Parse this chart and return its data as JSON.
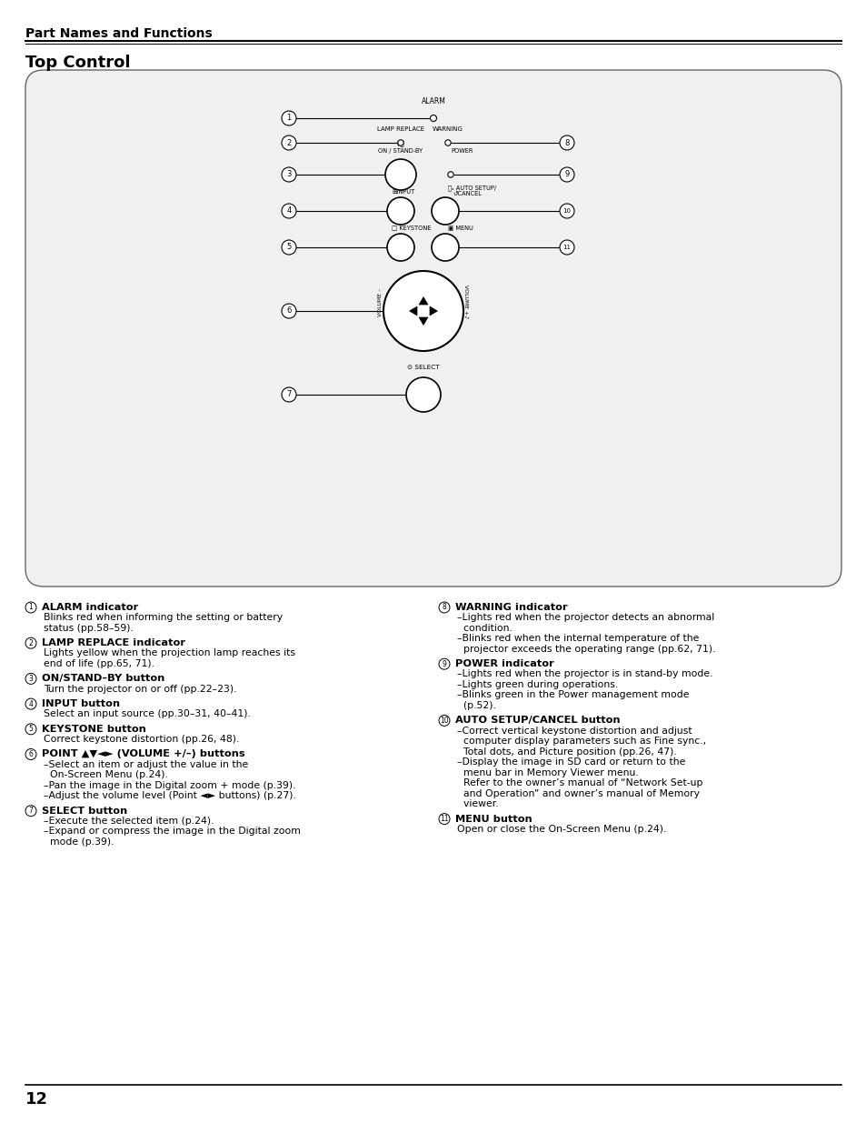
{
  "page_title": "Part Names and Functions",
  "section_title": "Top Control",
  "bg_color": "#ffffff",
  "page_number": "12",
  "left_items": [
    {
      "num": "1",
      "title": "ALARM indicator",
      "body": "Blinks red when informing the setting or battery\nstatus (pp.58–59)."
    },
    {
      "num": "2",
      "title": "LAMP REPLACE indicator",
      "body": "Lights yellow when the projection lamp reaches its\nend of life (pp.65, 71)."
    },
    {
      "num": "3",
      "title": "ON/STAND–BY button",
      "body": "Turn the projector on or off (pp.22–23)."
    },
    {
      "num": "4",
      "title": "INPUT button",
      "body": "Select an input source (pp.30–31, 40–41)."
    },
    {
      "num": "5",
      "title": "KEYSTONE button",
      "body": "Correct keystone distortion (pp.26, 48)."
    },
    {
      "num": "6",
      "title": "POINT ▲▼◄► (VOLUME +/–) buttons",
      "body": "–Select an item or adjust the value in the\n  On-Screen Menu (p.24).\n–Pan the image in the Digital zoom + mode (p.39).\n–Adjust the volume level (Point ◄► buttons) (p.27)."
    },
    {
      "num": "7",
      "title": "SELECT button",
      "body": "–Execute the selected item (p.24).\n–Expand or compress the image in the Digital zoom\n  mode (p.39)."
    }
  ],
  "right_items": [
    {
      "num": "8",
      "title": "WARNING indicator",
      "body": "–Lights red when the projector detects an abnormal\n  condition.\n–Blinks red when the internal temperature of the\n  projector exceeds the operating range (pp.62, 71)."
    },
    {
      "num": "9",
      "title": "POWER indicator",
      "body": "–Lights red when the projector is in stand-by mode.\n–Lights green during operations.\n–Blinks green in the Power management mode\n  (p.52)."
    },
    {
      "num": "10",
      "title": "AUTO SETUP/CANCEL button",
      "body": "–Correct vertical keystone distortion and adjust\n  computer display parameters such as Fine sync.,\n  Total dots, and Picture position (pp.26, 47).\n–Display the image in SD card or return to the\n  menu bar in Memory Viewer menu.\n  Refer to the owner’s manual of “Network Set-up\n  and Operation” and owner’s manual of Memory\n  viewer."
    },
    {
      "num": "11",
      "title": "MENU button",
      "body": "Open or close the On-Screen Menu (p.24)."
    }
  ]
}
